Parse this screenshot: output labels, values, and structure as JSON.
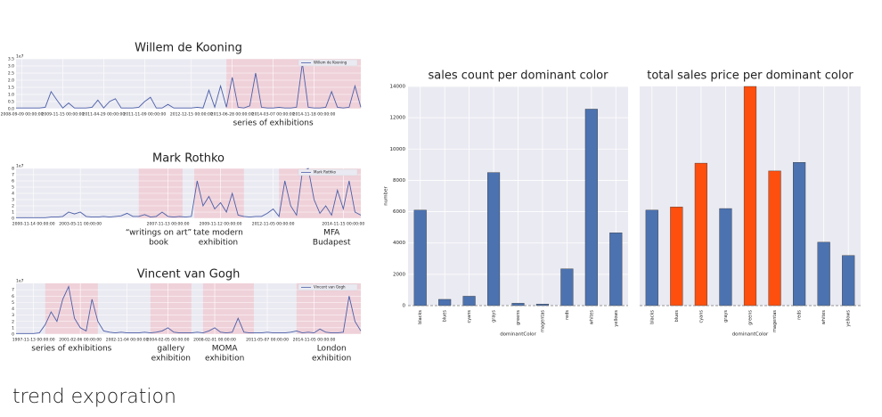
{
  "title": "trend exporation",
  "chart_data": [
    {
      "type": "line",
      "title": "Willem de Kooning",
      "categories": [
        null,
        "2008-09-09 00:00:00",
        null,
        null,
        null,
        null,
        null,
        null,
        "2009-11-15 00:00:00",
        null,
        null,
        null,
        null,
        null,
        null,
        "2011-04-29 00:00:00",
        null,
        null,
        null,
        null,
        null,
        null,
        "2011-11-09 00:00:00",
        null,
        null,
        null,
        null,
        null,
        null,
        null,
        "2012-12-15 00:00:00",
        null,
        null,
        null,
        null,
        null,
        null,
        "2013-06-28 00:00:00",
        null,
        null,
        null,
        null,
        null,
        null,
        "2014-03-07 00:00:00",
        null,
        null,
        null,
        null,
        null,
        null,
        "2014-11-18 00:00:00",
        null,
        null,
        null,
        null,
        null,
        null,
        null,
        null
      ],
      "series": [
        {
          "name": "Willem de Kooning",
          "color": "#4c5fa8",
          "values": [
            0.05,
            0.05,
            0.05,
            0.05,
            0.05,
            0.1,
            1.2,
            0.6,
            0.05,
            0.4,
            0.05,
            0.05,
            0.05,
            0.1,
            0.6,
            0.05,
            0.5,
            0.7,
            0.05,
            0.05,
            0.05,
            0.1,
            0.5,
            0.8,
            0.05,
            0.05,
            0.3,
            0.05,
            0.05,
            0.05,
            0.05,
            0.1,
            0.05,
            1.3,
            0.1,
            1.6,
            0.1,
            2.2,
            0.1,
            0.05,
            0.2,
            2.5,
            0.1,
            0.05,
            0.05,
            0.1,
            0.05,
            0.05,
            0.1,
            3.2,
            0.1,
            0.05,
            0.05,
            0.1,
            1.2,
            0.1,
            0.05,
            0.1,
            1.6,
            0.1
          ]
        }
      ],
      "ylim": [
        0,
        3.5
      ],
      "yticks": [
        {
          "value": 0,
          "label": "0.0"
        },
        {
          "value": 0.5,
          "label": "0.5"
        },
        {
          "value": 1,
          "label": "1.0"
        },
        {
          "value": 1.5,
          "label": "1.5"
        },
        {
          "value": 2,
          "label": "2.0"
        },
        {
          "value": 2.5,
          "label": "2.5"
        },
        {
          "value": 3,
          "label": "3.0"
        },
        {
          "value": 3.5,
          "label": "3.5"
        }
      ],
      "y_offset_label": "1e7",
      "grid": true,
      "legend": "upper right",
      "spans": [
        {
          "from": 36,
          "to": 59
        }
      ],
      "span_color": "#f0c8d0",
      "annotations": [
        {
          "x": 44,
          "text": [
            "series of exhibitions"
          ]
        }
      ]
    },
    {
      "type": "line",
      "title": "Mark Rothko",
      "categories": [
        null,
        null,
        null,
        "2000-11-14 00:00:00",
        null,
        null,
        null,
        null,
        null,
        null,
        null,
        "2003-05-11 00:00:00",
        null,
        null,
        null,
        null,
        null,
        null,
        null,
        null,
        null,
        null,
        null,
        null,
        null,
        null,
        "2007-11-13 00:00:00",
        null,
        null,
        null,
        null,
        null,
        null,
        null,
        null,
        "2009-11-12 00:00:00",
        null,
        null,
        null,
        null,
        null,
        null,
        null,
        null,
        "2012-11-05 00:00:00",
        null,
        null,
        null,
        null,
        null,
        null,
        null,
        null,
        null,
        null,
        null,
        "2014-11-15 00:00:00",
        null,
        null,
        null
      ],
      "series": [
        {
          "name": "Mark Rothko",
          "color": "#4c5fa8",
          "values": [
            0.1,
            0.1,
            0.1,
            0.1,
            0.1,
            0.1,
            0.2,
            0.2,
            0.3,
            1.0,
            0.7,
            1.0,
            0.3,
            0.2,
            0.2,
            0.3,
            0.2,
            0.3,
            0.4,
            0.8,
            0.3,
            0.3,
            0.6,
            0.2,
            0.3,
            1.0,
            0.3,
            0.2,
            0.3,
            0.2,
            0.3,
            6.0,
            2.0,
            3.5,
            1.5,
            2.5,
            1.0,
            4.0,
            0.5,
            0.3,
            0.2,
            0.3,
            0.3,
            0.8,
            1.5,
            0.3,
            6.0,
            2.0,
            0.5,
            7.5,
            8.0,
            3.0,
            0.8,
            2.0,
            0.5,
            4.5,
            1.5,
            6.0,
            1.0,
            0.5
          ]
        }
      ],
      "ylim": [
        0,
        8
      ],
      "yticks": [
        0,
        1,
        2,
        3,
        4,
        5,
        6,
        7,
        8
      ],
      "y_offset_label": "1e7",
      "grid": true,
      "legend": "upper right",
      "spans": [
        {
          "from": 21,
          "to": 28.5
        },
        {
          "from": 30.5,
          "to": 39
        },
        {
          "from": 45,
          "to": 59
        }
      ],
      "span_color": "#f0c8d0",
      "annotations": [
        {
          "x": 24.4,
          "text": [
            "“writings on art”",
            "book"
          ]
        },
        {
          "x": 34.6,
          "text": [
            "tate modern",
            "exhibition"
          ]
        },
        {
          "x": 54,
          "text": [
            "MFA",
            "Budapest"
          ]
        }
      ]
    },
    {
      "type": "line",
      "title": "Vincent van Gogh",
      "categories": [
        null,
        null,
        null,
        "1997-11-13 00:00:00",
        null,
        null,
        null,
        null,
        null,
        null,
        null,
        "2001-02-06 00:00:00",
        null,
        null,
        null,
        null,
        null,
        null,
        null,
        "2002-11-04 00:00:00",
        null,
        null,
        null,
        null,
        null,
        null,
        "2004-02-05 00:00:00",
        null,
        null,
        null,
        null,
        null,
        null,
        null,
        "2008-02-01 00:00:00",
        null,
        null,
        null,
        null,
        null,
        null,
        null,
        null,
        "2011-05-07 00:00:00",
        null,
        null,
        null,
        null,
        null,
        null,
        null,
        "2014-11-05 00:00:00",
        null,
        null,
        null,
        null,
        null,
        null,
        null,
        null
      ],
      "series": [
        {
          "name": "Vincent van Gogh",
          "color": "#4c5fa8",
          "values": [
            0.1,
            0.1,
            0.1,
            0.1,
            0.2,
            1.5,
            3.5,
            2.0,
            5.5,
            7.5,
            2.5,
            1.0,
            0.5,
            5.5,
            2.0,
            0.5,
            0.3,
            0.2,
            0.3,
            0.2,
            0.2,
            0.2,
            0.3,
            0.2,
            0.3,
            0.5,
            1.0,
            0.3,
            0.2,
            0.2,
            0.2,
            0.3,
            0.2,
            0.5,
            1.0,
            0.3,
            0.2,
            0.3,
            2.5,
            0.3,
            0.2,
            0.2,
            0.2,
            0.3,
            0.2,
            0.2,
            0.2,
            0.3,
            0.5,
            0.2,
            0.3,
            0.2,
            0.8,
            0.3,
            0.2,
            0.2,
            0.3,
            6.0,
            2.0,
            0.5
          ]
        }
      ],
      "ylim": [
        0,
        8
      ],
      "yticks": [
        0,
        1,
        2,
        3,
        4,
        5,
        6,
        7
      ],
      "y_offset_label": "1e7",
      "grid": true,
      "legend": "upper right",
      "spans": [
        {
          "from": 5,
          "to": 14
        },
        {
          "from": 23,
          "to": 30
        },
        {
          "from": 32,
          "to": 40.7
        },
        {
          "from": 48,
          "to": 59
        }
      ],
      "span_color": "#f0c8d0",
      "annotations": [
        {
          "x": 9.5,
          "text": [
            "series of exhibitions"
          ]
        },
        {
          "x": 26.5,
          "text": [
            "gallery",
            "exhibition"
          ]
        },
        {
          "x": 35.7,
          "text": [
            "MOMA",
            "exhibition"
          ]
        },
        {
          "x": 54,
          "text": [
            "London",
            "exhibition"
          ]
        }
      ]
    },
    {
      "type": "bar",
      "title": "sales count per dominant color",
      "categories": [
        "blacks",
        "blues",
        "cyans",
        "grays",
        "greens",
        "magentas",
        "reds",
        "whites",
        "yellows"
      ],
      "values": [
        6100,
        400,
        600,
        8500,
        150,
        100,
        2350,
        12550,
        4650
      ],
      "color": "#4c72b0",
      "ylim": [
        0,
        14000
      ],
      "yticks": [
        0,
        2000,
        4000,
        6000,
        8000,
        10000,
        12000,
        14000
      ],
      "xlabel": "dominantColor",
      "ylabel": "number",
      "grid": true
    },
    {
      "type": "bar",
      "title": "total sales price per dominant color",
      "categories": [
        "blacks",
        "blues",
        "cyans",
        "grays",
        "greens",
        "magentas",
        "reds",
        "whites",
        "yellows"
      ],
      "values": [
        6100,
        6300,
        9100,
        6200,
        14000,
        8600,
        9150,
        4050,
        3200
      ],
      "colors": [
        "#4c72b0",
        "#ff4f0e",
        "#ff4f0e",
        "#4c72b0",
        "#ff4f0e",
        "#ff4f0e",
        "#4c72b0",
        "#4c72b0",
        "#4c72b0"
      ],
      "ylim": [
        0,
        14000
      ],
      "xlabel": "dominantColor",
      "grid": true
    }
  ]
}
